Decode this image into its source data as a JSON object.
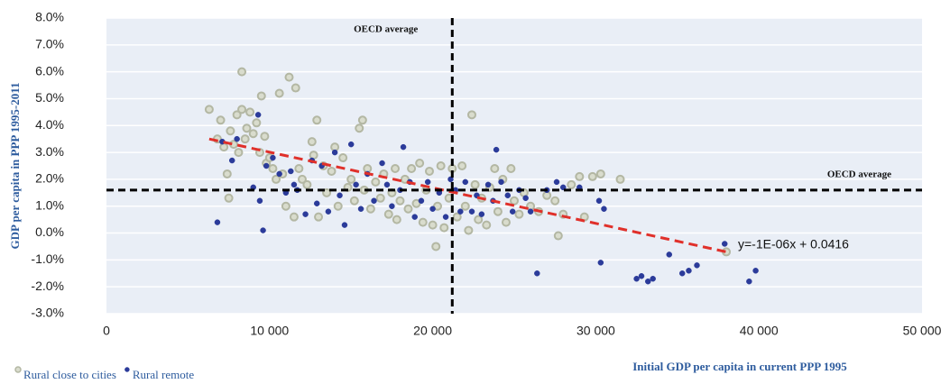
{
  "chart_data": {
    "type": "scatter",
    "y_axis_label": "GDP per capita  in PPP 1995-2011",
    "x_axis_label": "Initial GDP per capita in current PPP 1995",
    "xlim": [
      0,
      50000
    ],
    "ylim": [
      -3,
      8
    ],
    "xticks": [
      0,
      {
        "value": 10000,
        "label": "10 000"
      },
      {
        "value": 20000,
        "label": "20 000"
      },
      {
        "value": 30000,
        "label": "30 000"
      },
      {
        "value": 40000,
        "label": "40 000"
      },
      {
        "value": 50000,
        "label": "50 000"
      }
    ],
    "yticks": [
      {
        "value": -3,
        "label": "-3.0%"
      },
      {
        "value": -2,
        "label": "-2.0%"
      },
      {
        "value": -1,
        "label": "-1.0%"
      },
      {
        "value": 0,
        "label": "0.0%"
      },
      {
        "value": 1,
        "label": "1.0%"
      },
      {
        "value": 2,
        "label": "2.0%"
      },
      {
        "value": 3,
        "label": "3.0%"
      },
      {
        "value": 4,
        "label": "4.0%"
      },
      {
        "value": 5,
        "label": "5.0%"
      },
      {
        "value": 6,
        "label": "6.0%"
      },
      {
        "value": 7,
        "label": "7.0%"
      },
      {
        "value": 8,
        "label": "8.0%"
      }
    ],
    "grid": true,
    "legend": "bottom-left",
    "reference_lines": [
      {
        "axis": "x",
        "value": 21200,
        "label": "OECD average"
      },
      {
        "axis": "y",
        "value": 1.6,
        "label": "OECD average"
      }
    ],
    "trendline": {
      "x": [
        6300,
        38000
      ],
      "y": [
        3.5,
        -0.7
      ],
      "label": "y=-1E-06x + 0.0416",
      "color": "#e0302a"
    },
    "series": [
      {
        "name": "Rural close to cities",
        "color": "#b3b7a3",
        "x": [
          6300,
          6800,
          7000,
          7200,
          7400,
          7500,
          7600,
          7800,
          8000,
          8100,
          8300,
          8300,
          8500,
          8600,
          8800,
          9000,
          9200,
          9400,
          9500,
          9700,
          9800,
          10000,
          10200,
          10400,
          10600,
          10800,
          11000,
          11200,
          11500,
          11600,
          11800,
          12000,
          12300,
          12600,
          12700,
          12900,
          13000,
          13300,
          13500,
          13800,
          14000,
          14200,
          14500,
          14800,
          15000,
          15200,
          15500,
          15700,
          15800,
          16000,
          16200,
          16500,
          16800,
          17000,
          17300,
          17500,
          17700,
          17800,
          18000,
          18300,
          18500,
          18700,
          19000,
          19200,
          19400,
          19600,
          19800,
          20000,
          20200,
          20300,
          20500,
          20700,
          21000,
          21200,
          21500,
          21800,
          22000,
          22200,
          22400,
          22600,
          22800,
          23000,
          23300,
          23500,
          23800,
          24000,
          24300,
          24500,
          24800,
          25000,
          25300,
          25600,
          26000,
          26500,
          27000,
          27500,
          27700,
          28000,
          28500,
          29000,
          29300,
          29800,
          30300,
          31500,
          38000
        ],
        "values": [
          4.6,
          3.5,
          4.2,
          3.2,
          2.2,
          1.3,
          3.8,
          3.3,
          4.4,
          3.0,
          4.6,
          6.0,
          3.5,
          3.9,
          4.5,
          3.7,
          4.1,
          3.0,
          5.1,
          3.6,
          2.6,
          2.8,
          2.4,
          2.0,
          5.2,
          2.2,
          1.0,
          5.8,
          0.6,
          5.4,
          2.4,
          2.0,
          1.8,
          3.4,
          2.9,
          4.2,
          0.6,
          2.5,
          1.5,
          2.3,
          3.2,
          1.0,
          2.8,
          1.7,
          2.0,
          1.2,
          3.9,
          4.2,
          1.6,
          2.4,
          0.9,
          1.9,
          1.3,
          2.2,
          0.7,
          1.5,
          2.4,
          0.5,
          1.2,
          2.0,
          0.9,
          2.4,
          1.1,
          2.6,
          0.4,
          1.6,
          2.3,
          0.3,
          -0.5,
          1.0,
          2.5,
          0.2,
          1.3,
          2.4,
          0.6,
          2.5,
          1.0,
          0.1,
          4.4,
          1.8,
          0.5,
          1.3,
          0.3,
          1.7,
          2.4,
          0.8,
          2.0,
          0.4,
          2.4,
          1.2,
          0.7,
          1.5,
          1.0,
          0.8,
          1.4,
          1.2,
          -0.1,
          0.7,
          1.8,
          2.1,
          0.6,
          2.1,
          2.2,
          2.0,
          -0.7
        ]
      },
      {
        "name": "Rural remote",
        "color": "#2b3b9a",
        "x": [
          6800,
          7100,
          7700,
          8000,
          9000,
          9300,
          9400,
          9600,
          9800,
          10200,
          10600,
          11000,
          11300,
          11500,
          11700,
          12200,
          12600,
          12900,
          13200,
          13600,
          14000,
          14300,
          14600,
          15000,
          15300,
          15600,
          16000,
          16400,
          16900,
          17200,
          17500,
          18000,
          18200,
          18600,
          18900,
          19300,
          19700,
          20000,
          20400,
          20800,
          21100,
          21400,
          21700,
          22000,
          22400,
          22700,
          23000,
          23400,
          23700,
          23900,
          24200,
          24600,
          24900,
          25300,
          25700,
          26000,
          26400,
          27000,
          27600,
          28000,
          29000,
          30200,
          30300,
          30500,
          32500,
          32800,
          33200,
          33500,
          34500,
          35300,
          35700,
          36200,
          37900,
          39400,
          39800
        ],
        "values": [
          0.4,
          3.4,
          2.7,
          3.5,
          1.7,
          4.4,
          1.2,
          0.1,
          2.5,
          2.8,
          2.2,
          1.5,
          2.3,
          1.8,
          1.6,
          0.7,
          2.7,
          1.1,
          2.5,
          0.8,
          3.0,
          1.4,
          0.3,
          3.3,
          1.8,
          0.9,
          2.2,
          1.2,
          2.6,
          1.8,
          1.0,
          1.6,
          3.2,
          1.9,
          0.6,
          1.2,
          1.9,
          0.9,
          1.5,
          0.6,
          2.0,
          1.6,
          0.8,
          1.9,
          0.8,
          1.4,
          0.7,
          1.8,
          1.2,
          3.1,
          1.9,
          1.4,
          0.8,
          1.6,
          1.3,
          0.8,
          -1.5,
          1.6,
          1.9,
          1.7,
          1.7,
          1.2,
          -1.1,
          0.9,
          -1.7,
          -1.6,
          -1.8,
          -1.7,
          -0.8,
          -1.5,
          -1.4,
          -1.2,
          -0.4,
          -1.8,
          -1.4
        ]
      }
    ]
  }
}
